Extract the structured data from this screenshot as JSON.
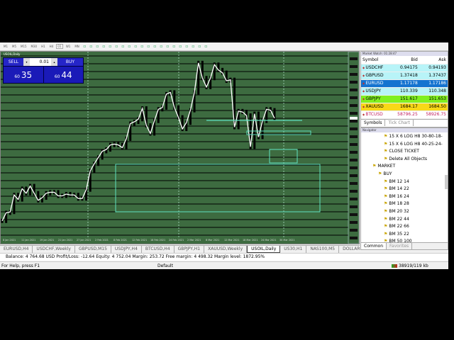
{
  "toolbar": {
    "timeframes": [
      "M1",
      "M5",
      "M15",
      "M30",
      "H1",
      "H4",
      "D1",
      "W1",
      "MN"
    ],
    "active_timeframe": "D1"
  },
  "chart": {
    "title": "USOIL,Daily",
    "colors": {
      "background": "#3d6b40",
      "line": "#ffffff",
      "candles": "#000000",
      "objects": "#5fe0c0"
    }
  },
  "trade_panel": {
    "sell_label": "SELL",
    "buy_label": "BUY",
    "lot": "0.01",
    "sell_big": "60",
    "sell_small": "35",
    "buy_big": "60",
    "buy_small": "44"
  },
  "chart_data": {
    "type": "line",
    "symbol": "USOIL",
    "timeframe": "Daily",
    "x_ticks": [
      "8 Jan 2021",
      "11 Jan 2021",
      "19 Jan 2021",
      "21 Jan 2021",
      "27 Jan 2021",
      "2 Feb 2021",
      "8 Feb 2021",
      "12 Feb 2021",
      "18 Feb 2021",
      "24 Feb 2021",
      "2 Mar 2021",
      "8 Mar 2021",
      "12 Mar 2021",
      "18 Mar 2021",
      "24 Mar 2021",
      "30 Mar 2021"
    ],
    "ylim": [
      45.5,
      69
    ],
    "close": [
      47.58,
      48.6,
      48.71,
      50.86,
      50.29,
      51.65,
      51.08,
      51.99,
      51.08,
      50.18,
      50.52,
      51.08,
      51.2,
      51.2,
      50.75,
      50.75,
      50.97,
      50.86,
      50.86,
      50.41,
      50.41,
      51.54,
      53.91,
      54.81,
      55.6,
      56.4,
      56.62,
      57.19,
      57.3,
      57.19,
      56.85,
      57.98,
      59.9,
      60.12,
      60.46,
      61.82,
      59.67,
      58.65,
      60.24,
      61.71,
      61.93,
      63.63,
      63.85,
      61.93,
      60.69,
      59.22,
      60.01,
      61.59,
      63.85,
      67.58,
      65.66,
      64.53,
      65.66,
      67.36,
      66.68,
      66.34,
      65.32,
      65.44,
      59.45,
      61.48,
      61.37,
      60.92,
      56.96,
      61.14,
      58.2,
      60.24,
      61.71,
      61.59,
      60.58
    ]
  },
  "chart_tabs": [
    "EURUSD,H4",
    "USDCHF,Weekly",
    "GBPUSD,M15",
    "USDJPY,H4",
    "BTCUSD,H4",
    "GBPJPY,H1",
    "XAUUSD,Weekly",
    "USOIL,Daily",
    "US30,H1",
    "NAS100,M5",
    "DOLLAR"
  ],
  "active_chart_tab": "USOIL,Daily",
  "terminal": {
    "text": "Balance: 4 764.68 USD  Profit/Loss: -12.64  Equity: 4 752.04  Margin: 253.72  Free margin: 4 498.32  Margin level: 1872.95%"
  },
  "status": {
    "help": "For Help, press F1",
    "profile": "Default",
    "traffic": "38919/119 kb"
  },
  "market_watch": {
    "title": "Market Watch: 01:28:47",
    "headers": [
      "Symbol",
      "Bid",
      "Ask"
    ],
    "rows": [
      {
        "symbol": "USDCHF",
        "bid": "0.94175",
        "ask": "0.94193",
        "bg": "#b8f4f8",
        "fg": "#000"
      },
      {
        "symbol": "GBPUSD",
        "bid": "1.37418",
        "ask": "1.37437",
        "bg": "#b8f4f8",
        "fg": "#000"
      },
      {
        "symbol": "EURUSD",
        "bid": "1.17178",
        "ask": "1.17186",
        "bg": "#1473d0",
        "fg": "#fff"
      },
      {
        "symbol": "USDJPY",
        "bid": "110.339",
        "ask": "110.348",
        "bg": "#b8f4f8",
        "fg": "#000"
      },
      {
        "symbol": "GBPJPY",
        "bid": "151.617",
        "ask": "151.653",
        "bg": "#80f020",
        "fg": "#000"
      },
      {
        "symbol": "XAUUSD",
        "bid": "1684.17",
        "ask": "1684.50",
        "bg": "#f8d818",
        "fg": "#000"
      },
      {
        "symbol": "BTCUSD",
        "bid": "58796.25",
        "ask": "58926.75",
        "bg": "#fff",
        "fg": "#c02060"
      }
    ],
    "tabs": [
      "Symbols",
      "Tick Chart"
    ]
  },
  "navigator": {
    "title": "Navigator",
    "items": [
      {
        "label": "15 X 6 LOG H8 30-80-18-",
        "level": 2
      },
      {
        "label": "15 X 6 LOG H8 40-25-24-",
        "level": 2
      },
      {
        "label": "CLOSE TICKET",
        "level": 2
      },
      {
        "label": "Delete All Objects",
        "level": 2
      },
      {
        "label": "MARKET",
        "level": 0
      },
      {
        "label": "BUY",
        "level": 1
      },
      {
        "label": "BM 12 14",
        "level": 2
      },
      {
        "label": "BM 14 22",
        "level": 2
      },
      {
        "label": "BM 16 24",
        "level": 2
      },
      {
        "label": "BM 18 28",
        "level": 2
      },
      {
        "label": "BM 20 32",
        "level": 2
      },
      {
        "label": "BM 22 44",
        "level": 2
      },
      {
        "label": "BM 22 66",
        "level": 2
      },
      {
        "label": "BM 35 22",
        "level": 2
      },
      {
        "label": "BM 50 100",
        "level": 2
      }
    ],
    "tabs": [
      "Common",
      "Favorites"
    ]
  }
}
